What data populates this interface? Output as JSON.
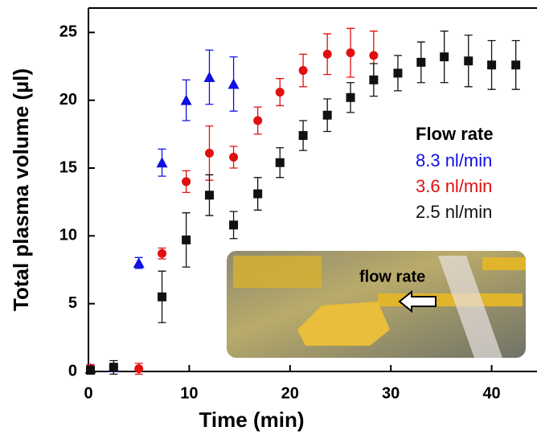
{
  "chart_data": {
    "type": "scatter",
    "x_label": "Time (min)",
    "y_label": "Total plasma volume (µl)",
    "xlim": [
      0,
      44.5
    ],
    "ylim": [
      0,
      26.8
    ],
    "xticks": [
      0,
      10,
      20,
      30,
      40
    ],
    "yticks": [
      0,
      5,
      10,
      15,
      20,
      25
    ],
    "legend_title": "Flow rate",
    "legend_position": "right",
    "inset_label": "flow rate",
    "series": [
      {
        "name": "8.3 nl/min",
        "color": "#1010e0",
        "marker": "triangle",
        "x": [
          0.2,
          2.5,
          5,
          7.3,
          9.7,
          12,
          14.4
        ],
        "values": [
          0.2,
          0.3,
          8,
          15.4,
          20,
          21.7,
          21.2
        ],
        "errors": [
          0.3,
          0.3,
          0.4,
          1,
          1.5,
          2,
          2
        ]
      },
      {
        "name": "3.6 nl/min",
        "color": "#e01010",
        "marker": "circle",
        "x": [
          0.2,
          2.5,
          5,
          7.3,
          9.7,
          12,
          14.4,
          16.8,
          19,
          21.3,
          23.7,
          26,
          28.3
        ],
        "values": [
          0.2,
          0.3,
          0.2,
          8.7,
          14,
          16.1,
          15.8,
          18.5,
          20.6,
          22.2,
          23.4,
          23.5,
          23.3
        ],
        "errors": [
          0.3,
          0.3,
          0.4,
          0.4,
          0.8,
          2,
          0.8,
          1,
          1,
          1.2,
          1.5,
          1.8,
          1.8
        ]
      },
      {
        "name": "2.5 nl/min",
        "color": "#111111",
        "marker": "square",
        "x": [
          0.2,
          2.5,
          7.3,
          9.7,
          12,
          14.4,
          16.8,
          19,
          21.3,
          23.7,
          26,
          28.3,
          30.7,
          33,
          35.3,
          37.7,
          40,
          42.4
        ],
        "values": [
          0.1,
          0.3,
          5.5,
          9.7,
          13,
          10.8,
          13.1,
          15.4,
          17.4,
          18.9,
          20.2,
          21.5,
          22,
          22.8,
          23.2,
          22.9,
          22.6,
          22.6
        ],
        "errors": [
          0.3,
          0.5,
          1.9,
          2,
          1.5,
          1,
          1.2,
          1.1,
          1.1,
          1.2,
          1.1,
          1.2,
          1.3,
          1.5,
          1.9,
          1.9,
          1.8,
          1.8
        ]
      }
    ]
  }
}
